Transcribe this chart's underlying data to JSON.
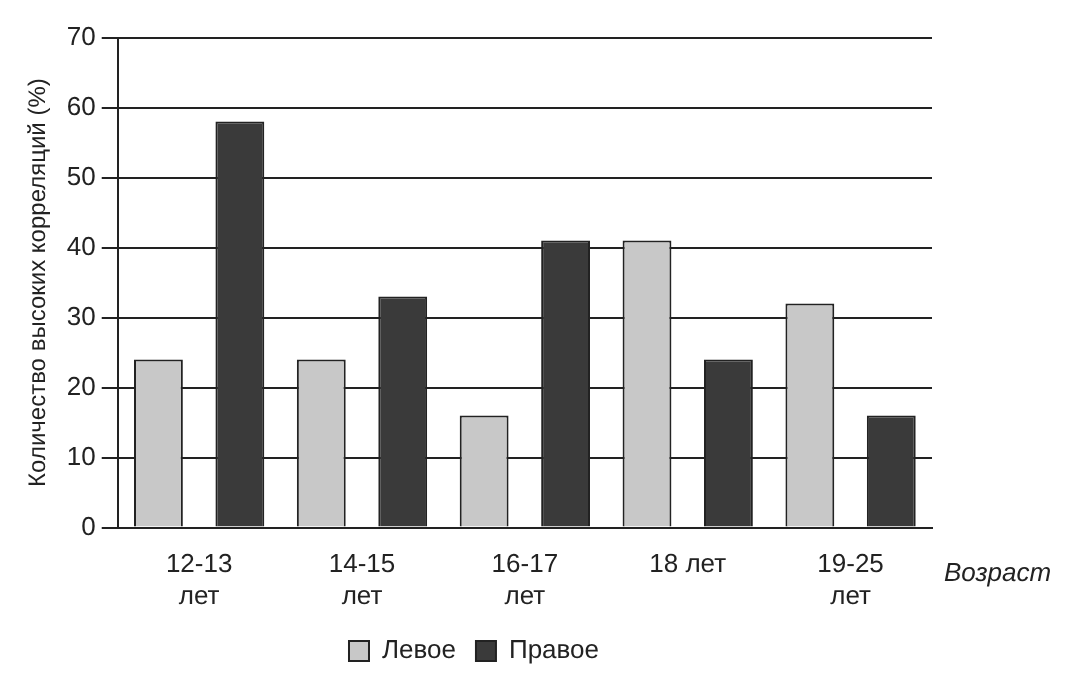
{
  "chart_data": {
    "type": "bar",
    "xlabel": "Возраст",
    "ylabel": "Количество высоких корреляций (%)",
    "categories": [
      "12-13\nлет",
      "14-15\nлет",
      "16-17\nлет",
      "18 лет",
      "19-25\nлет"
    ],
    "series": [
      {
        "name": "Левое",
        "color": "#c8c8c8",
        "values": [
          24,
          24,
          16,
          41,
          32
        ]
      },
      {
        "name": "Правое",
        "color": "#3a3a3a",
        "values": [
          58,
          33,
          41,
          24,
          16
        ]
      }
    ],
    "ylim": [
      0,
      70
    ],
    "yticks": [
      0,
      10,
      20,
      30,
      40,
      50,
      60,
      70
    ],
    "grid": "y",
    "legend": "bottom"
  }
}
